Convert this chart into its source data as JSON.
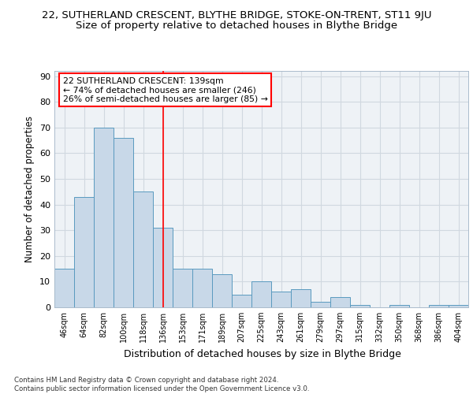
{
  "title_top": "22, SUTHERLAND CRESCENT, BLYTHE BRIDGE, STOKE-ON-TRENT, ST11 9JU",
  "title_sub": "Size of property relative to detached houses in Blythe Bridge",
  "xlabel": "Distribution of detached houses by size in Blythe Bridge",
  "ylabel": "Number of detached properties",
  "categories": [
    "46sqm",
    "64sqm",
    "82sqm",
    "100sqm",
    "118sqm",
    "136sqm",
    "153sqm",
    "171sqm",
    "189sqm",
    "207sqm",
    "225sqm",
    "243sqm",
    "261sqm",
    "279sqm",
    "297sqm",
    "315sqm",
    "332sqm",
    "350sqm",
    "368sqm",
    "386sqm",
    "404sqm"
  ],
  "values": [
    15,
    43,
    70,
    66,
    45,
    31,
    15,
    15,
    13,
    5,
    10,
    6,
    7,
    2,
    4,
    1,
    0,
    1,
    0,
    1,
    1
  ],
  "bar_color": "#c8d8e8",
  "bar_edge_color": "#5a9abf",
  "grid_color": "#d0d8e0",
  "background_color": "#eef2f6",
  "annotation_box_text": "22 SUTHERLAND CRESCENT: 139sqm\n← 74% of detached houses are smaller (246)\n26% of semi-detached houses are larger (85) →",
  "vline_x": 5.0,
  "ylim": [
    0,
    92
  ],
  "yticks": [
    0,
    10,
    20,
    30,
    40,
    50,
    60,
    70,
    80,
    90
  ],
  "footnote": "Contains HM Land Registry data © Crown copyright and database right 2024.\nContains public sector information licensed under the Open Government Licence v3.0.",
  "title_fontsize": 9.5,
  "subtitle_fontsize": 9.5,
  "xlabel_fontsize": 9,
  "ylabel_fontsize": 8.5
}
